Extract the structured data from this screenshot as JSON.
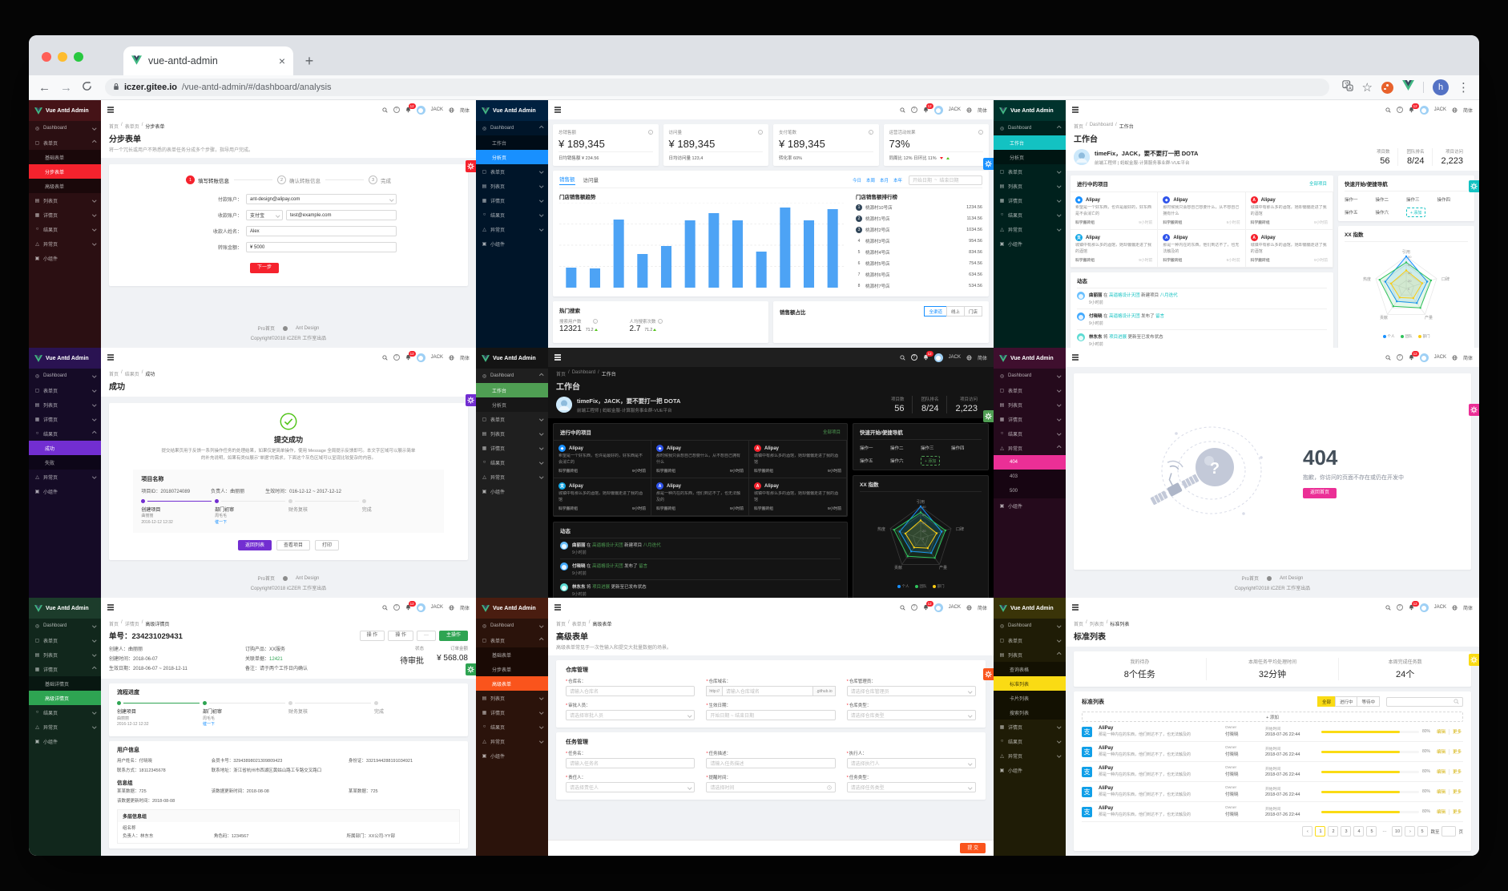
{
  "browser": {
    "tab_title": "vue-antd-admin",
    "close_tab": "×",
    "new_tab": "+",
    "back": "←",
    "forward": "→",
    "url_host": "iczer.gitee.io",
    "url_path": "/vue-antd-admin/#/dashboard/analysis",
    "avatar_letter": "h",
    "kebab": "⋮",
    "star": "☆"
  },
  "admin": {
    "logo": "Vue Antd Admin",
    "header": {
      "user": "JACK",
      "lang": "简体",
      "badge": "12"
    },
    "footer": {
      "link1": "Pro首页",
      "link2": "Ant Design",
      "copyright": "Copyright©2018 iCZER 工作室出品"
    },
    "menu": [
      {
        "label": "Dashboard",
        "icon": "dashboard-icon",
        "children": [
          "工作台",
          "分析页"
        ]
      },
      {
        "label": "表单页",
        "icon": "form-icon",
        "children": [
          "基础表单",
          "分步表单",
          "高级表单"
        ]
      },
      {
        "label": "列表页",
        "icon": "list-icon",
        "children": [
          "查询表格",
          "标准列表",
          "卡片列表",
          "搜索列表"
        ]
      },
      {
        "label": "详情页",
        "icon": "detail-icon",
        "children": [
          "基础详情页",
          "高级详情页"
        ]
      },
      {
        "label": "结果页",
        "icon": "result-icon",
        "children": [
          "成功",
          "失败"
        ]
      },
      {
        "label": "异常页",
        "icon": "warning-icon",
        "children": [
          "404",
          "403",
          "500"
        ]
      },
      {
        "label": "小组件",
        "icon": "widget-icon",
        "children": []
      }
    ]
  },
  "workplace": {
    "breadcrumb": [
      "首页",
      "Dashboard",
      "工作台"
    ],
    "title": "工作台",
    "greeting": "timeFix，JACK，要不要打一把 DOTA",
    "subtitle": "前端工程师 | 蚂蚁金服-计算服务事业群-VUE平台",
    "stats": [
      {
        "label": "项目数",
        "value": "56"
      },
      {
        "label": "团队排名",
        "value": "8/24"
      },
      {
        "label": "项目访问",
        "value": "2,223"
      }
    ],
    "projects_title": "进行中的项目",
    "all_projects": "全部项目",
    "projects": [
      {
        "name": "Alipay",
        "desc": "希望是一个好东西，也许是最好的，好东西是不会消亡的",
        "group": "科学搬砖组",
        "time": "9小时前",
        "color": "#1890ff",
        "glyph": "◆"
      },
      {
        "name": "Alipay",
        "desc": "那时候我只会想自己想要什么，从不想自己拥有什么",
        "group": "科学搬砖组",
        "time": "9小时前",
        "color": "#2f54eb",
        "glyph": "◆"
      },
      {
        "name": "Alipay",
        "desc": "城镇中有那么多的酒馆，她却偏偏走进了我的酒馆",
        "group": "科学搬砖组",
        "time": "9小时前",
        "color": "#f5222d",
        "glyph": "A"
      },
      {
        "name": "Alipay",
        "desc": "城镇中有那么多的酒馆，她却偏偏走进了我的酒馆",
        "group": "科学搬砖组",
        "time": "9小时前",
        "color": "#13a8e6",
        "glyph": "支"
      },
      {
        "name": "Alipay",
        "desc": "那是一种内在的东西，他们到达不了，也无法触及的",
        "group": "科学搬砖组",
        "time": "9小时前",
        "color": "#2f54eb",
        "glyph": "A"
      },
      {
        "name": "Alipay",
        "desc": "城镇中有那么多的酒馆，她却偏偏走进了我的酒馆",
        "group": "科学搬砖组",
        "time": "9小时前",
        "color": "#f5222d",
        "glyph": "A"
      }
    ],
    "quick_title": "快速开始/便捷导航",
    "quick_ops": [
      "操作一",
      "操作二",
      "操作三",
      "操作四",
      "操作五",
      "操作六"
    ],
    "quick_add": "+ 添加",
    "radar": {
      "title": "XX 指数",
      "axes": [
        "引用",
        "口碑",
        "产量",
        "贡献",
        "热度"
      ],
      "rings": [
        "80",
        "60",
        "40",
        "20",
        "0"
      ],
      "series": [
        {
          "name": "个人",
          "color": "#1890ff",
          "values": [
            80,
            55,
            45,
            40,
            55
          ]
        },
        {
          "name": "团队",
          "color": "#2fc25b",
          "values": [
            65,
            65,
            60,
            55,
            70
          ]
        },
        {
          "name": "部门",
          "color": "#facc14",
          "values": [
            45,
            42,
            30,
            28,
            40
          ]
        }
      ]
    },
    "feed_title": "动态",
    "feed": [
      {
        "user": "曲丽丽",
        "mid": "在",
        "link1": "高逼格设计天团",
        "act": "新建项目",
        "link2": "八月迭代",
        "time": "9小时前",
        "color": "#69c0ff"
      },
      {
        "user": "付晓晓",
        "mid": "在",
        "link1": "高逼格设计天团",
        "act": "发布了",
        "link2": "留言",
        "time": "9小时前",
        "color": "#40a9ff"
      },
      {
        "user": "林东东",
        "mid": "将",
        "link1": "项目进展",
        "act": "更新至已发布状态",
        "link2": "",
        "time": "9小时前",
        "color": "#5cdbd3"
      }
    ]
  },
  "flow_steps": [
    {
      "label": "创建项目",
      "sub1": "曲丽丽",
      "sub2": "2016-12-12 12:32",
      "state": "done"
    },
    {
      "label": "部门初审",
      "sub1": "周毛毛",
      "sub2": "催一下",
      "state": "current"
    },
    {
      "label": "财务复核",
      "sub1": "",
      "sub2": "",
      "state": "wait"
    },
    {
      "label": "完成",
      "sub1": "",
      "sub2": "",
      "state": "wait"
    }
  ],
  "panels": [
    {
      "id": "step-form",
      "type": "stepform",
      "theme": {
        "accent": "#f5222d",
        "sidebar": "#2b0f12",
        "logo": "#451317",
        "child": "#1a080a",
        "gearTop": 75
      },
      "open": "表单页",
      "selected": "分步表单",
      "breadcrumb": [
        "首页",
        "表单页",
        "分步表单"
      ],
      "title": "分步表单",
      "desc": "将一个冗长或用户不熟悉的表单任务分成多个步骤，指导用户完成。",
      "steps": [
        "填写转账信息",
        "确认转账信息",
        "完成"
      ],
      "fields": [
        {
          "label": "付款账户：",
          "value": "ant-design@alipay.com",
          "kind": "select"
        },
        {
          "label": "收款账户：",
          "value": "支付宝",
          "value2": "test@example.com",
          "kind": "combo"
        },
        {
          "label": "收款人姓名：",
          "value": "Alex",
          "kind": "input"
        },
        {
          "label": "转账金额：",
          "value": "¥ 5000",
          "kind": "input"
        }
      ],
      "next_btn": "下一步"
    },
    {
      "id": "analysis",
      "type": "analysis",
      "theme": {
        "accent": "#1890ff",
        "sidebar": "#001529",
        "logo": "#002140",
        "child": "#000c17",
        "gearTop": 72
      },
      "open": "Dashboard",
      "selected": "分析页",
      "cards": [
        {
          "title": "总销售额",
          "value": "¥ 189,345",
          "viz": "trend",
          "t1": "同周比 12%",
          "t2": "日环比 11%",
          "footer": "日均销售额 ¥ 234.56"
        },
        {
          "title": "访问量",
          "value": "¥ 189,345",
          "viz": "area",
          "footer": "日均访问量 123,4"
        },
        {
          "title": "支付笔数",
          "value": "¥ 189,345",
          "viz": "bars",
          "footer": "转化率 60%"
        },
        {
          "title": "运营活动效果",
          "value": "73%",
          "viz": "progress",
          "progress": 73,
          "footer": "同周比 12%  日环比 11%"
        }
      ],
      "tabs": [
        "销售额",
        "访问量"
      ],
      "ranges": [
        "今日",
        "本周",
        "本月",
        "本年"
      ],
      "date_start": "开始日期",
      "date_tilde": "~",
      "date_end": "结束日期",
      "chart": {
        "type": "bar",
        "title": "门店销售额趋势",
        "values": [
          25,
          24,
          85,
          42,
          52,
          84,
          93,
          84,
          45,
          100,
          84,
          98
        ],
        "color": "#4da3f5"
      },
      "rank": {
        "title": "门店销售额排行榜",
        "items": [
          {
            "rank": "1",
            "name": "桃源村10号店",
            "value": "1234.56"
          },
          {
            "rank": "2",
            "name": "桃源村1号店",
            "value": "1134.56"
          },
          {
            "rank": "3",
            "name": "桃源村2号店",
            "value": "1034.56"
          },
          {
            "rank": "4",
            "name": "桃源村3号店",
            "value": "954.56"
          },
          {
            "rank": "5",
            "name": "桃源村4号店",
            "value": "834.56"
          },
          {
            "rank": "6",
            "name": "桃源村5号店",
            "value": "754.56"
          },
          {
            "rank": "7",
            "name": "桃源村6号店",
            "value": "634.56"
          },
          {
            "rank": "8",
            "name": "桃源村7号店",
            "value": "534.56"
          }
        ]
      },
      "hot": {
        "title": "热门搜索",
        "s1l": "搜索用户数",
        "s1v": "12321",
        "s1d": "71.2",
        "s2l": "人均搜索次数",
        "s2v": "2.7",
        "s2d": "71.2"
      },
      "share": {
        "title": "销售额占比",
        "buttons": [
          "全渠道",
          "线上",
          "门店"
        ]
      }
    },
    {
      "id": "workplace-cyan",
      "type": "workplace",
      "theme": {
        "accent": "#13c2c2",
        "sidebar": "#00211d",
        "logo": "#00332d",
        "child": "#001512",
        "gearTop": 100
      },
      "open": "Dashboard",
      "selected": "工作台"
    },
    {
      "id": "result-success",
      "type": "result",
      "theme": {
        "accent": "#722ed1",
        "sidebar": "#150b26",
        "logo": "#2a1352",
        "child": "#0d0618",
        "gearTop": 58
      },
      "open": "结果页",
      "selected": "成功",
      "breadcrumb": [
        "首页",
        "结果页",
        "成功"
      ],
      "title": "成功",
      "headline": "提交成功",
      "desc": "提交结果页用于反馈一系列操作任务的处理结果，如果仅是简单操作，使用 Message 全局提示反馈即可。本文字区域可以展示简单的补充说明，如果有类似展示“单据”的需求，下面这个灰色区域可以呈现比较复杂的内容。",
      "box_title": "项目名称",
      "meta": [
        "项目ID：20180724089",
        "负责人：曲丽丽",
        "生效时间：016-12-12 ~ 2017-12-12"
      ],
      "buttons": [
        "返回列表",
        "查看项目",
        "打印"
      ]
    },
    {
      "id": "workplace-dark",
      "type": "workplace",
      "theme": {
        "accent": "#4f9e53",
        "sidebar": "#1f1f1f",
        "logo": "#141414",
        "child": "#171717",
        "dark": true,
        "gearTop": 78
      },
      "open": "Dashboard",
      "selected": "工作台"
    },
    {
      "id": "not-found",
      "type": "notfound",
      "theme": {
        "accent": "#eb2f96",
        "sidebar": "#250a1c",
        "logo": "#3f0f2e",
        "child": "#170512",
        "gearTop": 70
      },
      "open": "异常页",
      "selected": "404",
      "code": "404",
      "message": "抱歉，你访问的页面不存在或仍在开发中",
      "btn": "返回首页"
    },
    {
      "id": "detail-advanced",
      "type": "detail",
      "theme": {
        "accent": "#2ea452",
        "sidebar": "#11271c",
        "logo": "#1c3c2b",
        "child": "#081711",
        "gearTop": 82
      },
      "open": "详情页",
      "selected": "高级详情页",
      "breadcrumb": [
        "首页",
        "详情页",
        "高级详情页"
      ],
      "title": "单号：234231029431",
      "actions": [
        "操 作",
        "操 作",
        "···",
        "主操作"
      ],
      "meta_col1": [
        "创建人：曲丽丽",
        "创建时间：2018-06-07",
        "生效日期：2018-06-07 ~ 2018-12-11"
      ],
      "meta_col2": [
        "订购产品：XX服务",
        "关联单据：12421",
        "备注：请于两个工作日内确认"
      ],
      "status_label": "状态",
      "status_value": "待审批",
      "amount_label": "订单金额",
      "amount_value": "¥ 568.08",
      "flow_title": "流程进度",
      "user_title": "用户信息",
      "user_rows": [
        [
          "用户姓名：付晓晓",
          "会员卡号：32943898021309809423",
          "身份证：3321944288191034921"
        ],
        [
          "联系方式：18112345678",
          "联系地址：浙江省杭州市西湖区黄姑山路工专路交叉路口",
          ""
        ]
      ],
      "group_title": "信息组",
      "group_rows": [
        [
          "某某数据：725",
          "该数据更新时间：2018-08-08",
          "某某数据：725"
        ],
        [
          "该数据更新时间：2018-08-08",
          "",
          ""
        ]
      ],
      "multi_title": "多层信息组",
      "multi_sub": "组名称",
      "multi_row": [
        "负责人：林东东",
        "角色码：1234567",
        "所属部门：XX公司-YY部"
      ]
    },
    {
      "id": "form-advanced",
      "type": "advform",
      "theme": {
        "accent": "#fa541c",
        "sidebar": "#2b130b",
        "logo": "#4a1d10",
        "child": "#1a0a05",
        "gearTop": 88
      },
      "open": "表单页",
      "selected": "高级表单",
      "breadcrumb": [
        "首页",
        "表单页",
        "高级表单"
      ],
      "title": "高级表单",
      "desc": "高级表单常见于一次性输入和提交大批量数据的场景。",
      "card1_title": "仓库管理",
      "card1_fields": [
        {
          "label": "仓库名：",
          "ph": "请输入仓库名",
          "kind": "input"
        },
        {
          "label": "仓库域名：",
          "ph": "请输入仓库域名",
          "prefix": "http://",
          "suffix": ".github.io",
          "kind": "compound"
        },
        {
          "label": "仓库管理员：",
          "ph": "请选择仓库管理员",
          "kind": "select"
        },
        {
          "label": "审批人员：",
          "ph": "请选择审批人员",
          "kind": "select"
        },
        {
          "label": "生效日期：",
          "ph": "开始日期  ~  结束日期",
          "kind": "input"
        },
        {
          "label": "仓库类型：",
          "ph": "请选择仓库类型",
          "kind": "select"
        }
      ],
      "card2_title": "任务管理",
      "card2_fields": [
        {
          "label": "任务名：",
          "ph": "请输入任务名",
          "kind": "input"
        },
        {
          "label": "任务描述：",
          "ph": "请输入任务描述",
          "kind": "input"
        },
        {
          "label": "执行人：",
          "ph": "请选择执行人",
          "kind": "select"
        },
        {
          "label": "责任人：",
          "ph": "请选择责任人",
          "kind": "select"
        },
        {
          "label": "提醒时间：",
          "ph": "请选择时间",
          "kind": "time"
        },
        {
          "label": "任务类型：",
          "ph": "请选择任务类型",
          "kind": "select"
        }
      ],
      "submit": "提 交"
    },
    {
      "id": "list-standard",
      "type": "stdlist",
      "theme": {
        "accent": "#fadb14",
        "selText": "rgba(0,0,0,.75)",
        "sidebar": "#1f1c06",
        "logo": "#3a3408",
        "child": "#131102",
        "gearTop": 70
      },
      "open": "列表页",
      "selected": "标准列表",
      "breadcrumb": [
        "首页",
        "列表页",
        "标准列表"
      ],
      "title": "标准列表",
      "stats": [
        {
          "label": "我的待办",
          "value": "8个任务"
        },
        {
          "label": "本周任务平均处理时间",
          "value": "32分钟"
        },
        {
          "label": "本周完成任务数",
          "value": "24个"
        }
      ],
      "list_title": "标准列表",
      "filters": [
        "全部",
        "进行中",
        "等待中"
      ],
      "add_btn": "+ 添加",
      "rows": [
        {
          "name": "AliPay",
          "desc": "那是一种内在的东西，他们到达不了，也无法触及的",
          "owner_label": "Owner",
          "owner": "付晓晓",
          "time_label": "开始时间",
          "time": "2018-07-26 22:44",
          "progress": 80,
          "pct": "80%",
          "a1": "编辑",
          "a2": "更多"
        },
        {
          "name": "AliPay",
          "desc": "那是一种内在的东西，他们到达不了，也无法触及的",
          "owner_label": "Owner",
          "owner": "付晓晓",
          "time_label": "开始时间",
          "time": "2018-07-26 22:44",
          "progress": 80,
          "pct": "80%",
          "a1": "编辑",
          "a2": "更多"
        },
        {
          "name": "AliPay",
          "desc": "那是一种内在的东西，他们到达不了，也无法触及的",
          "owner_label": "Owner",
          "owner": "付晓晓",
          "time_label": "开始时间",
          "time": "2018-07-26 22:44",
          "progress": 80,
          "pct": "80%",
          "a1": "编辑",
          "a2": "更多"
        },
        {
          "name": "AliPay",
          "desc": "那是一种内在的东西，他们到达不了，也无法触及的",
          "owner_label": "Owner",
          "owner": "付晓晓",
          "time_label": "开始时间",
          "time": "2018-07-26 22:44",
          "progress": 80,
          "pct": "80%",
          "a1": "编辑",
          "a2": "更多"
        },
        {
          "name": "AliPay",
          "desc": "那是一种内在的东西，他们到达不了，也无法触及的",
          "owner_label": "Owner",
          "owner": "付晓晓",
          "time_label": "开始时间",
          "time": "2018-07-26 22:44",
          "progress": 80,
          "pct": "80%",
          "a1": "编辑",
          "a2": "更多"
        }
      ],
      "pagination": [
        "‹",
        "1",
        "2",
        "3",
        "4",
        "5",
        "···",
        "10",
        "›"
      ],
      "sizer": "5",
      "jump": "跳至",
      "page_word": "页"
    }
  ]
}
